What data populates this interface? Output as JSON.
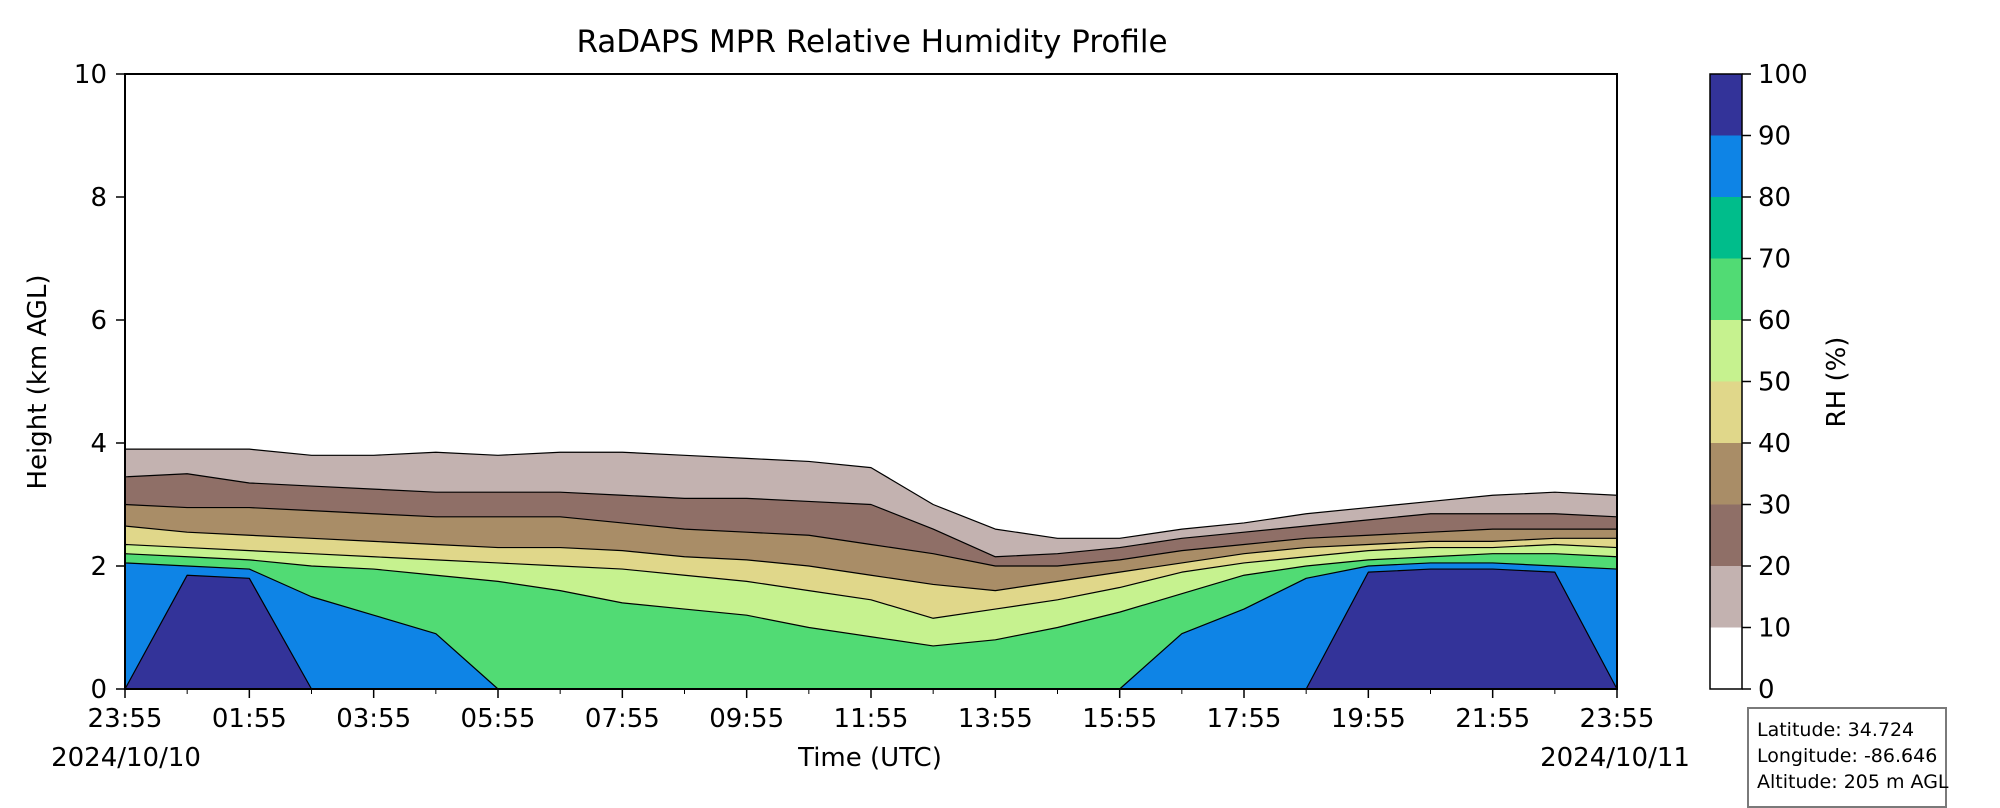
{
  "chart_data": {
    "type": "heatmap",
    "title": "RaDAPS MPR Relative Humidity Profile",
    "xlabel": "Time (UTC)",
    "ylabel": "Height (km AGL)",
    "colorbar_label": "RH (%)",
    "x_tick_labels": [
      "23:55",
      "01:55",
      "03:55",
      "05:55",
      "07:55",
      "09:55",
      "11:55",
      "13:55",
      "15:55",
      "17:55",
      "19:55",
      "21:55",
      "23:55"
    ],
    "x_hours_from_start": [
      0,
      2,
      4,
      6,
      8,
      10,
      12,
      14,
      16,
      18,
      20,
      22,
      24
    ],
    "start_date_label": "2024/10/10",
    "end_date_label": "2024/10/11",
    "ylim": [
      0,
      10
    ],
    "y_ticks": [
      0,
      2,
      4,
      6,
      8,
      10
    ],
    "rh_levels": [
      0,
      10,
      20,
      30,
      40,
      50,
      60,
      70,
      80,
      90,
      100
    ],
    "rh_colors": [
      "#ffffff",
      "#c3b2b0",
      "#8f6f67",
      "#a98d67",
      "#e0d78a",
      "#c6f28f",
      "#51db74",
      "#00bd8b",
      "#0e84e6",
      "#333399"
    ],
    "sample_hours": [
      0,
      1,
      2,
      3,
      4,
      5,
      6,
      7,
      8,
      9,
      10,
      11,
      12,
      13,
      14,
      15,
      16,
      17,
      18,
      19,
      20,
      21,
      22,
      23,
      24
    ],
    "contour_heights_km": {
      "rh_10": [
        3.9,
        3.9,
        3.9,
        3.8,
        3.8,
        3.85,
        3.8,
        3.85,
        3.85,
        3.8,
        3.75,
        3.7,
        3.6,
        3.0,
        2.6,
        2.45,
        2.45,
        2.6,
        2.7,
        2.85,
        2.95,
        3.05,
        3.15,
        3.2,
        3.15
      ],
      "rh_20": [
        3.45,
        3.5,
        3.35,
        3.3,
        3.25,
        3.2,
        3.2,
        3.2,
        3.15,
        3.1,
        3.1,
        3.05,
        3.0,
        2.6,
        2.15,
        2.2,
        2.3,
        2.45,
        2.55,
        2.65,
        2.75,
        2.85,
        2.85,
        2.85,
        2.8
      ],
      "rh_30": [
        3.0,
        2.95,
        2.95,
        2.9,
        2.85,
        2.8,
        2.8,
        2.8,
        2.7,
        2.6,
        2.55,
        2.5,
        2.35,
        2.2,
        2.0,
        2.0,
        2.1,
        2.25,
        2.35,
        2.45,
        2.5,
        2.55,
        2.6,
        2.6,
        2.6
      ],
      "rh_40": [
        2.65,
        2.55,
        2.5,
        2.45,
        2.4,
        2.35,
        2.3,
        2.3,
        2.25,
        2.15,
        2.1,
        2.0,
        1.85,
        1.7,
        1.6,
        1.75,
        1.9,
        2.05,
        2.2,
        2.3,
        2.35,
        2.4,
        2.4,
        2.45,
        2.45
      ],
      "rh_50": [
        2.35,
        2.3,
        2.25,
        2.2,
        2.15,
        2.1,
        2.05,
        2.0,
        1.95,
        1.85,
        1.75,
        1.6,
        1.45,
        1.15,
        1.3,
        1.45,
        1.65,
        1.9,
        2.05,
        2.15,
        2.25,
        2.3,
        2.3,
        2.35,
        2.3
      ],
      "rh_60": [
        2.2,
        2.15,
        2.1,
        2.0,
        1.95,
        1.85,
        1.75,
        1.6,
        1.4,
        1.3,
        1.2,
        1.0,
        0.85,
        0.7,
        0.8,
        1.0,
        1.25,
        1.55,
        1.85,
        2.0,
        2.1,
        2.15,
        2.2,
        2.2,
        2.15
      ],
      "rh_80": [
        2.05,
        2.0,
        1.95,
        1.5,
        1.2,
        0.9,
        0.0,
        0.0,
        0.0,
        0.0,
        0.0,
        0.0,
        0.0,
        0.0,
        0.0,
        0.0,
        0.0,
        0.9,
        1.3,
        1.8,
        2.0,
        2.05,
        2.05,
        2.0,
        1.95
      ],
      "rh_90": [
        0.0,
        1.85,
        1.8,
        0.0,
        0.0,
        0.0,
        0.0,
        0.0,
        0.0,
        0.0,
        0.0,
        0.0,
        0.0,
        0.0,
        0.0,
        0.0,
        0.0,
        0.0,
        0.0,
        0.0,
        1.9,
        1.95,
        1.95,
        1.9,
        0.0
      ]
    }
  },
  "info_box": {
    "latitude": "Latitude: 34.724",
    "longitude": "Longitude: -86.646",
    "altitude": "Altitude: 205 m AGL"
  }
}
